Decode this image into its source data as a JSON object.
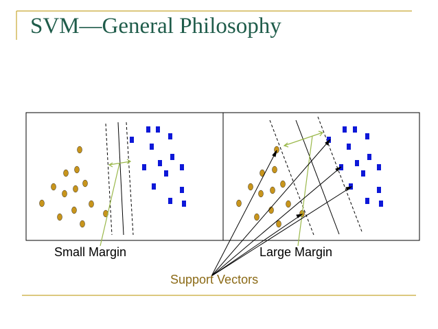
{
  "slide": {
    "title": "SVM—General Philosophy",
    "caption_left": "Small Margin",
    "caption_right": "Large Margin",
    "caption_support": "Support Vectors"
  },
  "colors": {
    "title": "#1f5c4a",
    "accent_line": "#c8a832",
    "circle_fill": "#c8951c",
    "square_fill": "#0d18d8",
    "margin_arrow": "#9ab84a",
    "support_text": "#8b6a16"
  }
}
